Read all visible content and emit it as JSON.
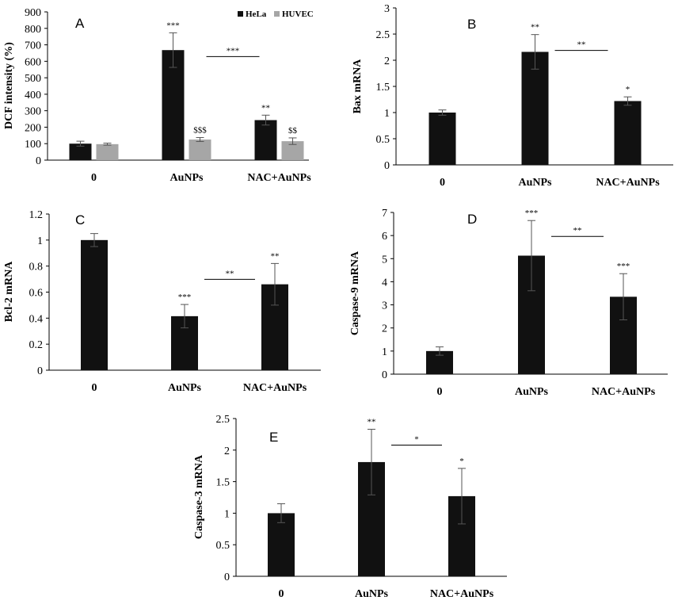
{
  "chart_data": [
    {
      "type": "bar",
      "panel_label": "A",
      "categories": [
        "0",
        "AuNPs",
        "NAC+AuNPs"
      ],
      "ylabel": "DCF intensity (%)",
      "ylim": [
        0,
        900
      ],
      "yticks": [
        "0",
        "100",
        "200",
        "300",
        "400",
        "500",
        "600",
        "700",
        "800",
        "900"
      ],
      "legend": "top-right",
      "series": [
        {
          "name": "HeLa",
          "color": "#111111",
          "values": [
            100,
            668,
            243
          ],
          "errors": [
            15,
            105,
            30
          ],
          "annotations": [
            "",
            "***",
            "**"
          ]
        },
        {
          "name": "HUVEC",
          "color": "#a6a6a6",
          "values": [
            97,
            125,
            115
          ],
          "errors": [
            6,
            12,
            20
          ],
          "annotations": [
            "",
            "$$$",
            "$$"
          ]
        }
      ],
      "bracket": {
        "from": 1,
        "to": 2,
        "label": "***"
      }
    },
    {
      "type": "bar",
      "panel_label": "B",
      "categories": [
        "0",
        "AuNPs",
        "NAC+AuNPs"
      ],
      "ylabel": "Bax mRNA",
      "ylim": [
        0,
        3
      ],
      "yticks": [
        "0",
        "0.5",
        "1",
        "1.5",
        "2",
        "2.5",
        "3"
      ],
      "series": [
        {
          "color": "#111111",
          "values": [
            1.0,
            2.16,
            1.22
          ],
          "errors": [
            0.05,
            0.33,
            0.08
          ],
          "annotations": [
            "",
            "**",
            "*"
          ]
        }
      ],
      "bracket": {
        "from": 1,
        "to": 2,
        "label": "**"
      }
    },
    {
      "type": "bar",
      "panel_label": "C",
      "categories": [
        "0",
        "AuNPs",
        "NAC+AuNPs"
      ],
      "ylabel": "Bcl-2 mRNA",
      "ylim": [
        0,
        1.2
      ],
      "yticks": [
        "0",
        "0.2",
        "0.4",
        "0.6",
        "0.8",
        "1",
        "1.2"
      ],
      "series": [
        {
          "color": "#111111",
          "values": [
            1.0,
            0.415,
            0.66
          ],
          "errors": [
            0.05,
            0.09,
            0.16
          ],
          "annotations": [
            "",
            "***",
            "**"
          ]
        }
      ],
      "bracket": {
        "from": 1,
        "to": 2,
        "label": "**"
      }
    },
    {
      "type": "bar",
      "panel_label": "D",
      "categories": [
        "0",
        "AuNPs",
        "NAC+AuNPs"
      ],
      "ylabel": "Caspase-9 mRNA",
      "ylim": [
        0,
        7
      ],
      "yticks": [
        "0",
        "1",
        "2",
        "3",
        "4",
        "5",
        "6",
        "7"
      ],
      "series": [
        {
          "color": "#111111",
          "values": [
            1.0,
            5.13,
            3.35
          ],
          "errors": [
            0.18,
            1.52,
            1.0
          ],
          "annotations": [
            "",
            "***",
            "***"
          ]
        }
      ],
      "bracket": {
        "from": 1,
        "to": 2,
        "label": "**"
      }
    },
    {
      "type": "bar",
      "panel_label": "E",
      "categories": [
        "0",
        "AuNPs",
        "NAC+AuNPs"
      ],
      "ylabel": "Caspase-3 mRNA",
      "ylim": [
        0,
        2.5
      ],
      "yticks": [
        "0",
        "0.5",
        "1",
        "1.5",
        "2",
        "2.5"
      ],
      "series": [
        {
          "color": "#111111",
          "values": [
            1.0,
            1.81,
            1.27
          ],
          "errors": [
            0.15,
            0.52,
            0.44
          ],
          "annotations": [
            "",
            "**",
            "*"
          ]
        }
      ],
      "bracket": {
        "from": 1,
        "to": 2,
        "label": "*"
      }
    }
  ]
}
